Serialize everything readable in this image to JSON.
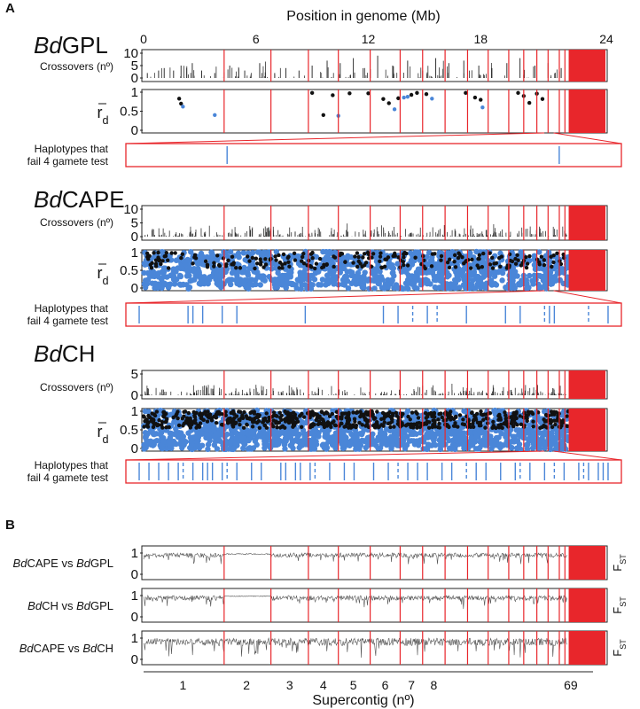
{
  "figure": {
    "panel_a_letter": "A",
    "panel_b_letter": "B",
    "top_axis_title": "Position in genome (Mb)",
    "top_axis_ticks": [
      "0",
      "6",
      "12",
      "18",
      "24"
    ],
    "bottom_axis_title": "Supercontig (nº)",
    "bottom_axis_ticks": [
      "1",
      "2",
      "3",
      "4",
      "5",
      "6",
      "7",
      "8",
      "69"
    ]
  },
  "colors": {
    "boundary": "#e8262b",
    "blue_points": "#4a86d8",
    "black_points": "#111111",
    "bars": "#333333",
    "frame": "#222222"
  },
  "chart_data": [
    {
      "type": "bar",
      "population": "Bd GPL",
      "pop_prefix": "Bd",
      "pop_name": "GPL",
      "ylabel": "Crossovers (nº)",
      "yticks": [
        "10",
        "5",
        "0"
      ],
      "ylim": [
        0,
        10
      ],
      "x_unit": "Mb",
      "xlim": [
        0,
        24
      ],
      "sampled_values": [
        {
          "x": 0.2,
          "y": 2
        },
        {
          "x": 0.8,
          "y": 3
        },
        {
          "x": 1.1,
          "y": 4
        },
        {
          "x": 1.6,
          "y": 3
        },
        {
          "x": 2.0,
          "y": 5
        },
        {
          "x": 2.3,
          "y": 4
        },
        {
          "x": 2.6,
          "y": 6
        },
        {
          "x": 3.1,
          "y": 3
        },
        {
          "x": 3.8,
          "y": 2
        },
        {
          "x": 4.6,
          "y": 5
        },
        {
          "x": 5.4,
          "y": 3
        },
        {
          "x": 6.2,
          "y": 6
        },
        {
          "x": 7.0,
          "y": 2
        },
        {
          "x": 7.6,
          "y": 4
        },
        {
          "x": 8.3,
          "y": 3
        },
        {
          "x": 9.0,
          "y": 5
        },
        {
          "x": 9.8,
          "y": 7
        },
        {
          "x": 10.5,
          "y": 6
        },
        {
          "x": 11.2,
          "y": 8
        },
        {
          "x": 11.8,
          "y": 4
        },
        {
          "x": 12.5,
          "y": 9
        },
        {
          "x": 13.3,
          "y": 5
        },
        {
          "x": 14.1,
          "y": 7
        },
        {
          "x": 14.9,
          "y": 3
        },
        {
          "x": 15.6,
          "y": 8
        },
        {
          "x": 16.3,
          "y": 6
        },
        {
          "x": 17.1,
          "y": 7
        },
        {
          "x": 17.9,
          "y": 5
        },
        {
          "x": 18.6,
          "y": 4
        },
        {
          "x": 19.4,
          "y": 6
        },
        {
          "x": 20.1,
          "y": 8
        },
        {
          "x": 20.9,
          "y": 5
        },
        {
          "x": 21.6,
          "y": 6
        },
        {
          "x": 22.3,
          "y": 4
        }
      ]
    },
    {
      "type": "scatter",
      "population": "Bd GPL",
      "ylabel_main": "r",
      "ylabel_sub": "d",
      "yticks": [
        "1",
        "0.5",
        "0"
      ],
      "ylim": [
        0,
        1
      ],
      "xlim": [
        0,
        24
      ],
      "series": [
        {
          "color": "black",
          "points": [
            [
              1.9,
              0.83
            ],
            [
              2.0,
              0.7
            ],
            [
              9.0,
              0.98
            ],
            [
              9.6,
              0.4
            ],
            [
              10.1,
              0.92
            ],
            [
              11.0,
              0.97
            ],
            [
              12.0,
              0.97
            ],
            [
              12.8,
              0.82
            ],
            [
              13.1,
              0.71
            ],
            [
              13.6,
              0.84
            ],
            [
              14.3,
              0.93
            ],
            [
              14.6,
              0.98
            ],
            [
              15.1,
              0.95
            ],
            [
              17.2,
              0.98
            ],
            [
              17.7,
              0.86
            ],
            [
              18.0,
              0.8
            ],
            [
              20.0,
              0.98
            ],
            [
              20.3,
              0.9
            ],
            [
              20.6,
              0.72
            ],
            [
              21.0,
              0.96
            ],
            [
              21.3,
              0.82
            ]
          ]
        },
        {
          "color": "blue",
          "points": [
            [
              2.1,
              0.62
            ],
            [
              3.8,
              0.4
            ],
            [
              10.4,
              0.38
            ],
            [
              13.4,
              0.55
            ],
            [
              13.9,
              0.86
            ],
            [
              14.1,
              0.88
            ],
            [
              15.4,
              0.83
            ],
            [
              18.1,
              0.6
            ]
          ]
        }
      ]
    },
    {
      "type": "heatmap",
      "population": "Bd GPL",
      "label_line1": "Haplotypes that",
      "label_line2": "fail 4 gamete test",
      "solid_lines": [
        0.2,
        0.88
      ],
      "dashed_lines": []
    },
    {
      "type": "bar",
      "population": "Bd CAPE",
      "pop_prefix": "Bd",
      "pop_name": "CAPE",
      "ylabel": "Crossovers (nº)",
      "yticks": [
        "10",
        "5",
        "0"
      ],
      "ylim": [
        0,
        10
      ],
      "xlim": [
        0,
        24
      ],
      "note": "dense low crossover counts, mostly 0-5"
    },
    {
      "type": "scatter",
      "population": "Bd CAPE",
      "ylabel_main": "r",
      "ylabel_sub": "d",
      "yticks": [
        "1",
        "0.5",
        "0"
      ],
      "ylim": [
        0,
        1
      ],
      "xlim": [
        0,
        24
      ],
      "series": [
        {
          "color": "blue",
          "note": "dense cloud of points across 0-1"
        },
        {
          "color": "black",
          "note": "scattered points mostly 0.6-1"
        }
      ]
    },
    {
      "type": "heatmap",
      "population": "Bd CAPE",
      "label_line1": "Haplotypes that",
      "label_line2": "fail 4 gamete test",
      "solid_lines": [
        0.02,
        0.12,
        0.13,
        0.15,
        0.19,
        0.22,
        0.36,
        0.52,
        0.55,
        0.61,
        0.69,
        0.77,
        0.8,
        0.86,
        0.87,
        0.98
      ],
      "dashed_lines": [
        0.58,
        0.63,
        0.85,
        0.94
      ]
    },
    {
      "type": "bar",
      "population": "Bd CH",
      "pop_prefix": "Bd",
      "pop_name": "CH",
      "ylabel": "Crossovers (nº)",
      "yticks": [
        "5",
        "0"
      ],
      "ylim": [
        0,
        5
      ],
      "xlim": [
        0,
        24
      ],
      "note": "dense crossover counts up to about 3"
    },
    {
      "type": "scatter",
      "population": "Bd CH",
      "ylabel_main": "r",
      "ylabel_sub": "d",
      "yticks": [
        "1",
        "0.5",
        "0"
      ],
      "ylim": [
        0,
        1
      ],
      "xlim": [
        0,
        24
      ],
      "series": [
        {
          "color": "blue",
          "note": "very dense cloud 0-1"
        },
        {
          "color": "black",
          "note": "dense upper band 0.6-1"
        }
      ]
    },
    {
      "type": "heatmap",
      "population": "Bd CH",
      "label_line1": "Haplotypes that",
      "label_line2": "fail 4 gamete test",
      "solid_lines": [
        0.02,
        0.04,
        0.06,
        0.08,
        0.1,
        0.13,
        0.15,
        0.16,
        0.17,
        0.19,
        0.22,
        0.25,
        0.27,
        0.31,
        0.32,
        0.34,
        0.35,
        0.37,
        0.41,
        0.44,
        0.46,
        0.5,
        0.53,
        0.57,
        0.59,
        0.61,
        0.64,
        0.66,
        0.71,
        0.73,
        0.76,
        0.79,
        0.82,
        0.85,
        0.89,
        0.92,
        0.94,
        0.96,
        0.97,
        0.98
      ],
      "dashed_lines": [
        0.11,
        0.2,
        0.38,
        0.55,
        0.69,
        0.8,
        0.87,
        0.93
      ]
    },
    {
      "type": "line",
      "comparison_prefix1": "Bd",
      "comparison_name1": "CAPE",
      "comparison_mid": " vs ",
      "comparison_prefix2": "Bd",
      "comparison_name2": "GPL",
      "ylabel_main": "F",
      "ylabel_sub": "ST",
      "yticks": [
        "1",
        "0"
      ],
      "ylim": [
        0,
        1
      ],
      "typical_range": [
        0.6,
        1.0
      ]
    },
    {
      "type": "line",
      "comparison_prefix1": "Bd",
      "comparison_name1": "CH",
      "comparison_mid": " vs ",
      "comparison_prefix2": "Bd",
      "comparison_name2": "GPL",
      "ylabel_main": "F",
      "ylabel_sub": "ST",
      "yticks": [
        "1",
        "0"
      ],
      "ylim": [
        0,
        1
      ],
      "typical_range": [
        0.55,
        1.0
      ]
    },
    {
      "type": "line",
      "comparison_prefix1": "Bd",
      "comparison_name1": "CAPE",
      "comparison_mid": " vs ",
      "comparison_prefix2": "Bd",
      "comparison_name2": "CH",
      "ylabel_main": "F",
      "ylabel_sub": "ST",
      "yticks": [
        "1",
        "0"
      ],
      "ylim": [
        0,
        1
      ],
      "typical_range": [
        0.3,
        1.0
      ]
    }
  ],
  "supercontig_boundaries_mb": [
    4.3,
    6.8,
    8.8,
    10.4,
    12.1,
    13.7,
    14.9,
    16.1,
    17.3,
    18.4,
    19.5,
    20.3,
    21.0,
    21.6,
    22.2,
    22.5
  ]
}
